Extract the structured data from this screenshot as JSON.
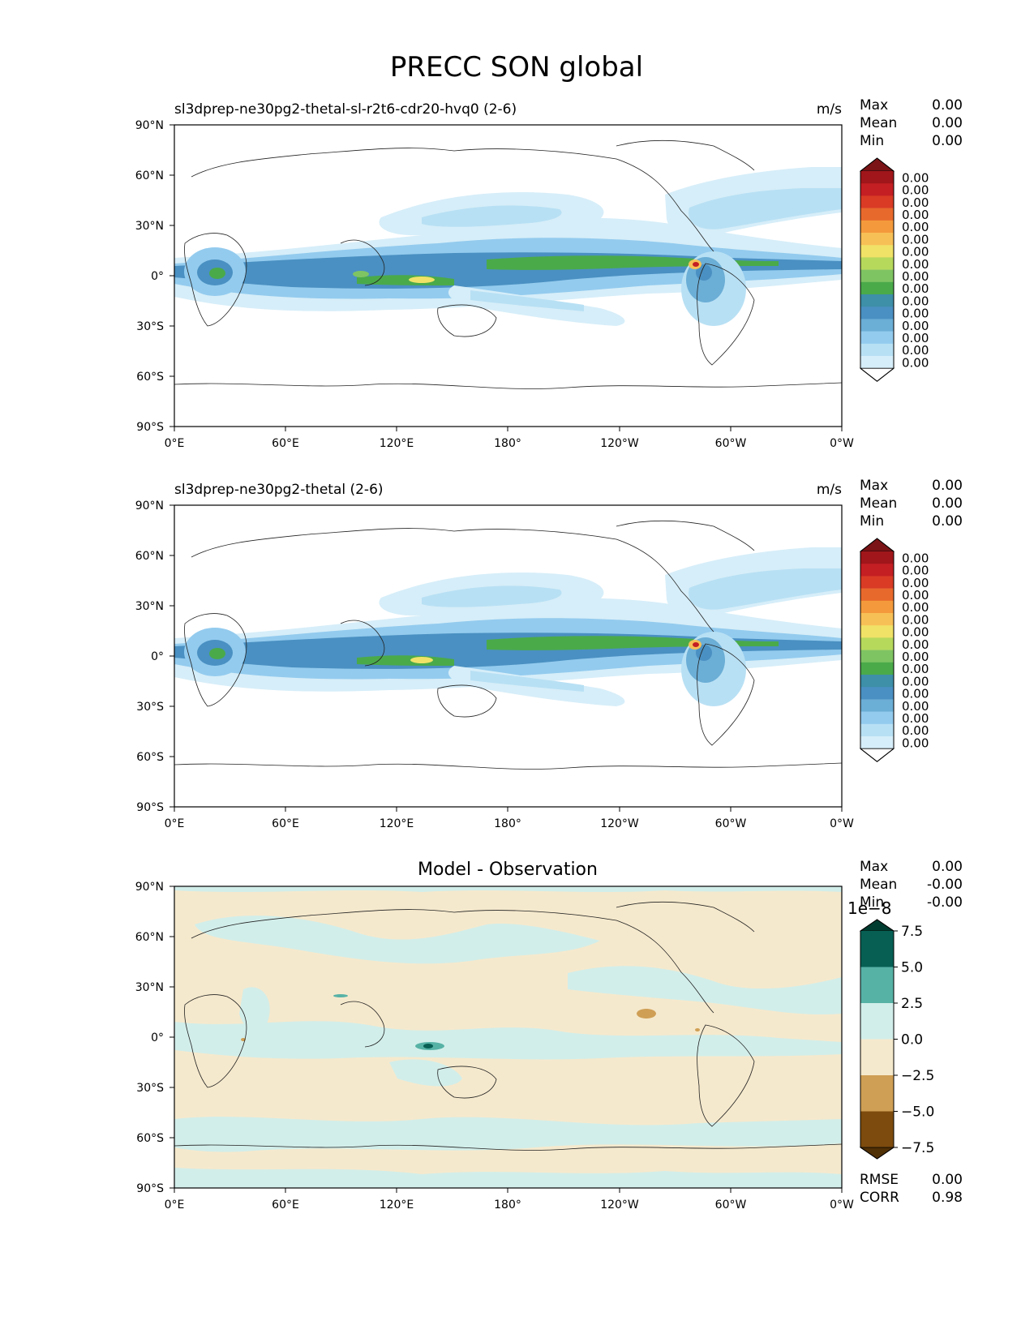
{
  "figure": {
    "title": "PRECC SON global"
  },
  "axes": {
    "lat_ticks": [
      "90°N",
      "60°N",
      "30°N",
      "0°",
      "30°S",
      "60°S",
      "90°S"
    ],
    "lon_ticks": [
      "0°E",
      "60°E",
      "120°E",
      "180°",
      "120°W",
      "60°W",
      "0°W"
    ]
  },
  "panels": [
    {
      "id": "test",
      "title_left": "sl3dprep-ne30pg2-thetal-sl-r2t6-cdr20-hvq0 (2-6)",
      "units": "m/s",
      "stats": [
        {
          "label": "Max",
          "value": "0.00"
        },
        {
          "label": "Mean",
          "value": "0.00"
        },
        {
          "label": "Min",
          "value": "0.00"
        }
      ],
      "colorbar_labels": [
        "0.00",
        "0.00",
        "0.00",
        "0.00",
        "0.00",
        "0.00",
        "0.00",
        "0.00",
        "0.00",
        "0.00",
        "0.00",
        "0.00",
        "0.00",
        "0.00",
        "0.00",
        "0.00"
      ]
    },
    {
      "id": "reference",
      "title_left": "sl3dprep-ne30pg2-thetal (2-6)",
      "units": "m/s",
      "stats": [
        {
          "label": "Max",
          "value": "0.00"
        },
        {
          "label": "Mean",
          "value": "0.00"
        },
        {
          "label": "Min",
          "value": "0.00"
        }
      ],
      "colorbar_labels": [
        "0.00",
        "0.00",
        "0.00",
        "0.00",
        "0.00",
        "0.00",
        "0.00",
        "0.00",
        "0.00",
        "0.00",
        "0.00",
        "0.00",
        "0.00",
        "0.00",
        "0.00",
        "0.00"
      ]
    },
    {
      "id": "difference",
      "title_center": "Model - Observation",
      "stats": [
        {
          "label": "Max",
          "value": "0.00"
        },
        {
          "label": "Mean",
          "value": "-0.00"
        },
        {
          "label": "Min",
          "value": "-0.00"
        }
      ],
      "colorbar_exponent": "1e−8",
      "colorbar_labels": [
        "7.5",
        "5.0",
        "2.5",
        "0.0",
        "−2.5",
        "−5.0",
        "−7.5"
      ],
      "extra_stats": [
        {
          "label": "RMSE",
          "value": "0.00"
        },
        {
          "label": "CORR",
          "value": "0.98"
        }
      ]
    }
  ],
  "colors": {
    "precip_levels": [
      "#ffffff",
      "#d6eef9",
      "#b8e0f4",
      "#93cbee",
      "#6baed6",
      "#4a90c2",
      "#3e8fa8",
      "#4aaa4a",
      "#7fc463",
      "#b6d95c",
      "#f0e267",
      "#f7c057",
      "#f49a3c",
      "#e8692c",
      "#d93b25",
      "#c41f23",
      "#a0161a",
      "#7a1416"
    ],
    "diff_levels": [
      "#503005",
      "#7d4b0d",
      "#cf9f55",
      "#f5e9cd",
      "#d2eeea",
      "#57b2a6",
      "#075f54",
      "#013c30"
    ],
    "land_outline": "#222222"
  }
}
